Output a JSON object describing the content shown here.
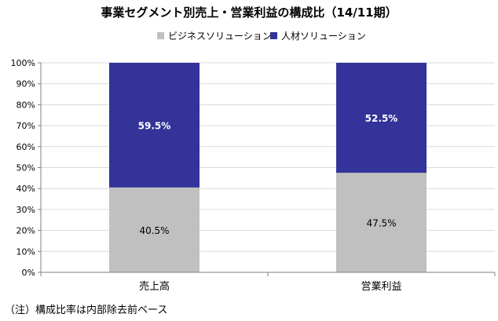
{
  "chart_data": {
    "type": "bar",
    "stacked": true,
    "title": "事業セグメント別売上・営業利益の構成比（14/11期）",
    "categories": [
      "売上高",
      "営業利益"
    ],
    "series": [
      {
        "name": "ビジネスソリューション",
        "values": [
          40.5,
          47.5
        ],
        "labels": [
          "40.5%",
          "47.5%"
        ],
        "color": "#c0c0c0"
      },
      {
        "name": "人材ソリューション",
        "values": [
          59.5,
          52.5
        ],
        "labels": [
          "59.5%",
          "52.5%"
        ],
        "color": "#333399"
      }
    ],
    "ylim": [
      0,
      100
    ],
    "yticks": [
      "0%",
      "10%",
      "20%",
      "30%",
      "40%",
      "50%",
      "60%",
      "70%",
      "80%",
      "90%",
      "100%"
    ],
    "grid": true,
    "legend": "top"
  },
  "footnote": "（注）構成比率は内部除去前ベース"
}
